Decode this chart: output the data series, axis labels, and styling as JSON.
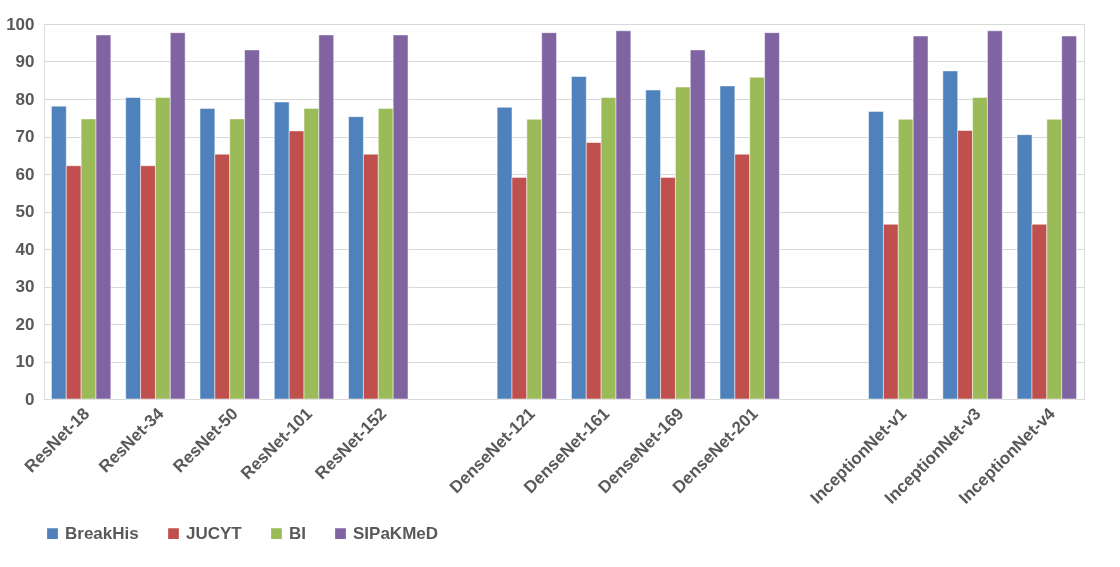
{
  "chart_data": {
    "type": "bar",
    "categories": [
      "ResNet-18",
      "ResNet-34",
      "ResNet-50",
      "ResNet-101",
      "ResNet-152",
      null,
      "DenseNet-121",
      "DenseNet-161",
      "DenseNet-169",
      "DenseNet-201",
      null,
      "InceptionNet-v1",
      "InceptionNet-v3",
      "InceptionNet-v4"
    ],
    "series": [
      {
        "name": "BreakHis",
        "color": "#4f81bd",
        "values": [
          78.1,
          80.4,
          77.5,
          79.2,
          75.3,
          null,
          77.8,
          86.0,
          82.4,
          83.5,
          null,
          76.7,
          87.5,
          70.5
        ]
      },
      {
        "name": "JUCYT",
        "color": "#c0504d",
        "values": [
          62.2,
          62.2,
          65.3,
          71.5,
          65.3,
          null,
          59.1,
          68.4,
          59.1,
          65.3,
          null,
          46.6,
          71.6,
          46.6
        ]
      },
      {
        "name": "BI",
        "color": "#9bbb59",
        "values": [
          74.7,
          80.4,
          74.7,
          77.5,
          77.5,
          null,
          74.6,
          80.4,
          83.2,
          85.8,
          null,
          74.6,
          80.4,
          74.6
        ]
      },
      {
        "name": "SIPaKMeD",
        "color": "#8064a2",
        "values": [
          97.1,
          97.7,
          93.1,
          97.1,
          97.1,
          null,
          97.7,
          98.2,
          93.1,
          97.7,
          null,
          96.8,
          98.2,
          96.8
        ]
      }
    ],
    "ylim": [
      0,
      100
    ],
    "yticks": [
      0,
      10,
      20,
      30,
      40,
      50,
      60,
      70,
      80,
      90,
      100
    ],
    "grid": "y",
    "legend": "bottom"
  }
}
